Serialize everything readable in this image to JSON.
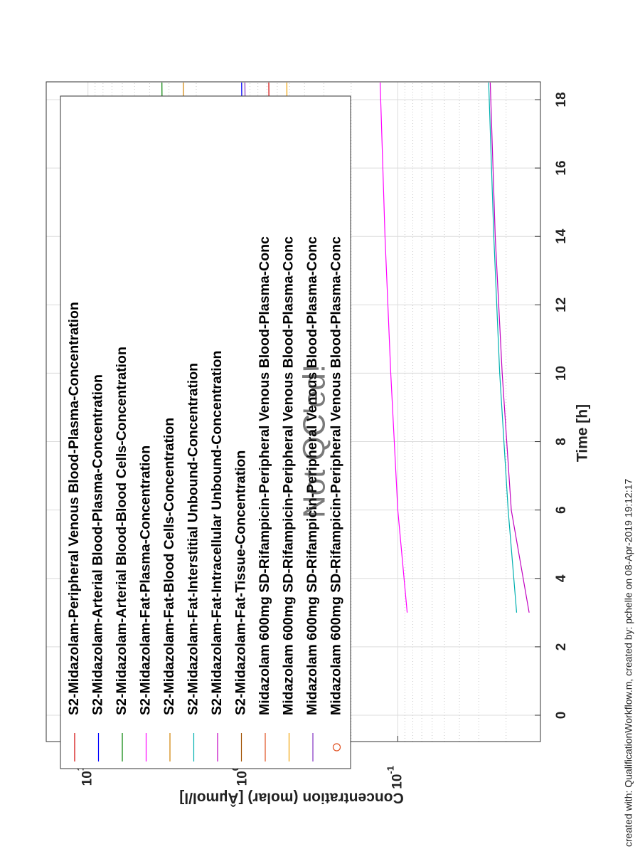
{
  "chart_data": {
    "type": "line",
    "xlabel": "Time [h]",
    "ylabel": "Concentration (molar) [Âµmol/l]",
    "watermark": "Not QC'ed!",
    "footer": "created with: QualificationWorkflow.m, created by: pchelle on 08-Apr-2019 19:12:17",
    "x": [
      3,
      6,
      10,
      14,
      18.5
    ],
    "xlim": [
      -0.77,
      18.52
    ],
    "xticks": [
      0,
      2,
      4,
      6,
      8,
      10,
      12,
      14,
      16,
      18
    ],
    "ylim": [
      0.012,
      18.6
    ],
    "log_y": true,
    "yticks": [
      {
        "value": 0.1,
        "label": "10",
        "exponent": "-1"
      },
      {
        "value": 1,
        "label": "10",
        "exponent": "0"
      },
      {
        "value": 10,
        "label": "10",
        "exponent": "1"
      }
    ],
    "grid": true,
    "legend": "upper-left",
    "series": [
      {
        "name": "S2-Midazolam-Peripheral Venous Blood-Plasma-Concentration",
        "color": "#d00000",
        "values": [
          0.6,
          0.63,
          0.65,
          0.67,
          0.68
        ]
      },
      {
        "name": "S2-Midazolam-Arterial Blood-Plasma-Concentration",
        "color": "#0000ff",
        "values": [
          0.9,
          0.95,
          0.98,
          1.0,
          1.02
        ]
      },
      {
        "name": "S2-Midazolam-Arterial Blood-Blood Cells-Concentration",
        "color": "#008000",
        "values": [
          3.0,
          3.1,
          3.2,
          3.28,
          3.33
        ]
      },
      {
        "name": "S2-Midazolam-Fat-Plasma-Concentration",
        "color": "#ff00ff",
        "values": [
          0.087,
          0.1,
          0.111,
          0.121,
          0.13
        ]
      },
      {
        "name": "S2-Midazolam-Fat-Blood Cells-Concentration",
        "color": "#d08000",
        "values": [
          2.2,
          2.3,
          2.35,
          2.4,
          2.42
        ]
      },
      {
        "name": "S2-Midazolam-Fat-Interstitial Unbound-Concentration",
        "color": "#00b0b0",
        "values": [
          0.0171,
          0.0194,
          0.022,
          0.024,
          0.0259
        ]
      },
      {
        "name": "S2-Midazolam-Fat-Intracellular Unbound-Concentration",
        "color": "#c000c0",
        "values": [
          0.0142,
          0.0185,
          0.0212,
          0.0235,
          0.0253
        ]
      },
      {
        "name": "S2-Midazolam-Fat-Tissue-Concentration",
        "color": "#a05000",
        "values": [
          null,
          null,
          null,
          null,
          null
        ]
      },
      {
        "name": "Midazolam 600mg SD-Rifampicin-Peripheral Venous Blood-Plasma-Conc",
        "color": "#e05020",
        "values": [
          null,
          null,
          null,
          null,
          null
        ]
      },
      {
        "name": "Midazolam 600mg SD-Rifampicin-Peripheral Venous Blood-Plasma-Conc",
        "color": "#f0a000",
        "values": [
          0.48,
          0.5,
          0.51,
          0.515,
          0.52
        ]
      },
      {
        "name": "Midazolam 600mg SD-Rifampicin-Peripheral Venous Blood-Plasma-Conc",
        "color": "#8030c0",
        "values": [
          0.85,
          0.9,
          0.93,
          0.95,
          0.97
        ]
      },
      {
        "name": "Midazolam 600mg SD-Rifampicin-Peripheral Venous Blood-Plasma-Conc",
        "color": "#e05020",
        "marker": "circle",
        "values": [
          null,
          null,
          null,
          null,
          null
        ]
      }
    ]
  }
}
